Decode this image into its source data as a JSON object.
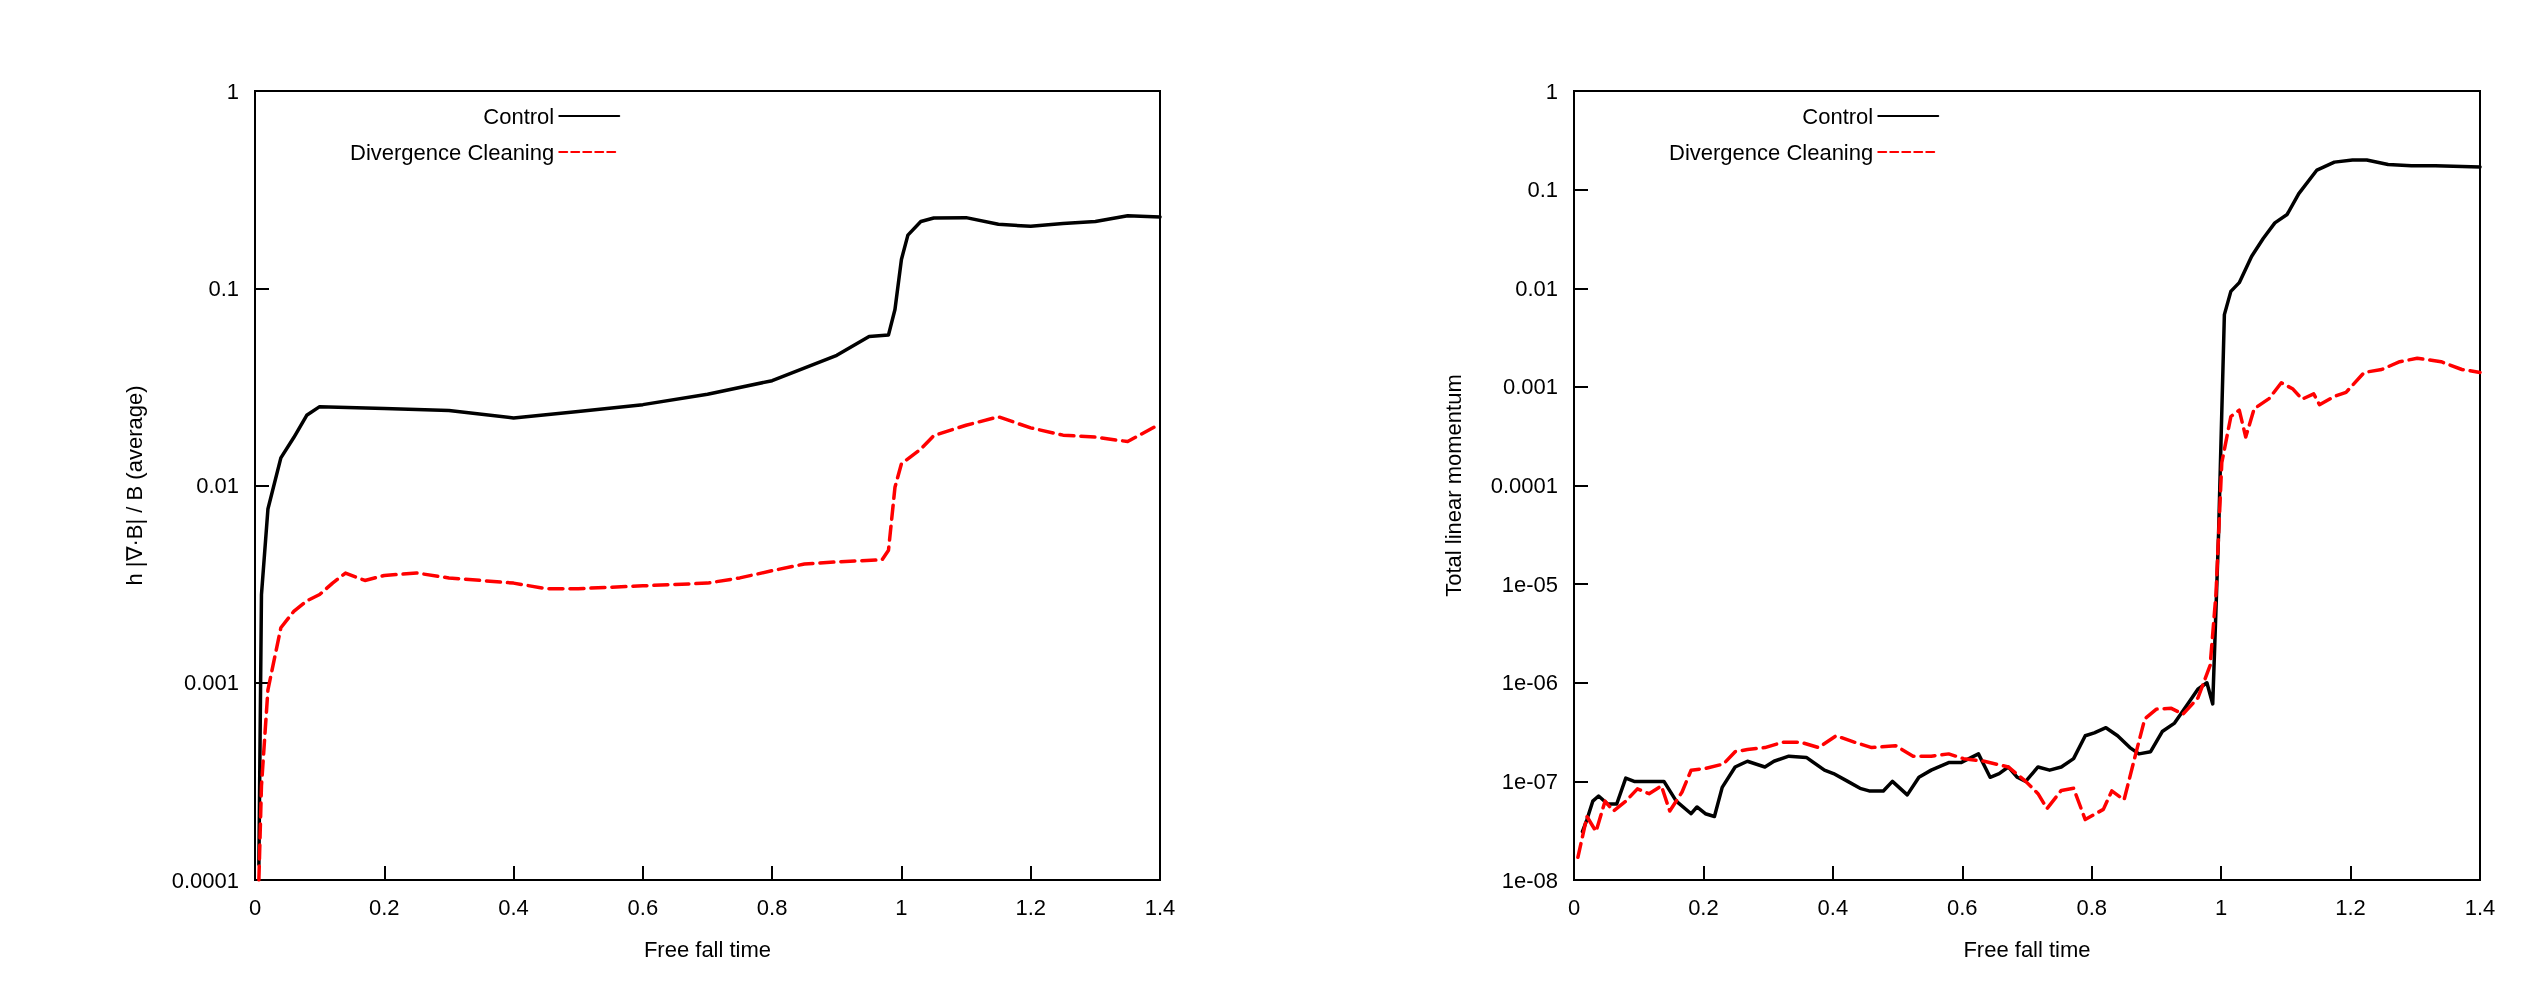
{
  "chart_data": [
    {
      "type": "line",
      "xlabel": "Free fall time",
      "ylabel": "h |∇·B| / B (average)",
      "log": "y",
      "legend": "top left",
      "grid": false,
      "marker": "none",
      "xlim": [
        0,
        1.4
      ],
      "xticks": [
        0,
        0.2,
        0.4,
        0.6,
        0.8,
        1,
        1.2,
        1.4
      ],
      "ylim": [
        0.0001,
        1
      ],
      "yticks": [
        0.0001,
        0.001,
        0.01,
        0.1,
        1
      ],
      "series": [
        {
          "name": "Control",
          "color": "#000000",
          "line_style": "solid",
          "x": [
            0.006,
            0.01,
            0.02,
            0.04,
            0.06,
            0.08,
            0.1,
            0.2,
            0.3,
            0.4,
            0.5,
            0.6,
            0.7,
            0.8,
            0.9,
            0.95,
            0.98,
            0.99,
            1.0,
            1.01,
            1.03,
            1.05,
            1.1,
            1.15,
            1.2,
            1.25,
            1.3,
            1.35,
            1.4
          ],
          "values": [
            0.00012,
            0.0028,
            0.0076,
            0.0138,
            0.0175,
            0.0227,
            0.0251,
            0.0246,
            0.024,
            0.022,
            0.0237,
            0.0257,
            0.029,
            0.034,
            0.0457,
            0.057,
            0.058,
            0.078,
            0.14,
            0.186,
            0.218,
            0.227,
            0.228,
            0.211,
            0.206,
            0.213,
            0.218,
            0.233,
            0.23
          ]
        },
        {
          "name": "Divergence Cleaning",
          "color": "#ff0000",
          "line_style": "dashed",
          "x": [
            0.006,
            0.01,
            0.02,
            0.04,
            0.06,
            0.08,
            0.1,
            0.12,
            0.14,
            0.17,
            0.2,
            0.25,
            0.3,
            0.35,
            0.4,
            0.45,
            0.5,
            0.6,
            0.7,
            0.75,
            0.8,
            0.85,
            0.9,
            0.97,
            0.98,
            0.99,
            1.0,
            1.03,
            1.05,
            1.1,
            1.15,
            1.2,
            1.25,
            1.3,
            1.35,
            1.4
          ],
          "values": [
            0.0001,
            0.0003,
            0.00092,
            0.0019,
            0.0023,
            0.0026,
            0.0028,
            0.0032,
            0.0036,
            0.0033,
            0.0035,
            0.0036,
            0.0034,
            0.0033,
            0.0032,
            0.003,
            0.003,
            0.0031,
            0.0032,
            0.0034,
            0.0037,
            0.004,
            0.0041,
            0.0042,
            0.0047,
            0.0098,
            0.0129,
            0.0153,
            0.0179,
            0.0202,
            0.0223,
            0.0196,
            0.018,
            0.0176,
            0.0167,
            0.0205
          ]
        }
      ]
    },
    {
      "type": "line",
      "xlabel": "Free fall time",
      "ylabel": "Total linear momentum",
      "log": "y",
      "legend": "top left",
      "grid": false,
      "marker": "none",
      "xlim": [
        0,
        1.4
      ],
      "xticks": [
        0,
        0.2,
        0.4,
        0.6,
        0.8,
        1,
        1.2,
        1.4
      ],
      "ylim": [
        1e-08,
        1
      ],
      "yticks": [
        {
          "value": 1e-08,
          "label": "1e-08"
        },
        {
          "value": 1e-07,
          "label": "1e-07"
        },
        {
          "value": 1e-06,
          "label": "1e-06"
        },
        {
          "value": 1e-05,
          "label": "1e-05"
        },
        0.0001,
        0.001,
        0.01,
        0.1,
        1
      ],
      "series": [
        {
          "name": "Control",
          "color": "#000000",
          "line_style": "solid",
          "x": [
            0.013,
            0.02,
            0.029,
            0.038,
            0.052,
            0.066,
            0.08,
            0.093,
            0.121,
            0.139,
            0.158,
            0.181,
            0.19,
            0.203,
            0.217,
            0.229,
            0.249,
            0.268,
            0.295,
            0.309,
            0.332,
            0.359,
            0.387,
            0.401,
            0.423,
            0.442,
            0.456,
            0.478,
            0.492,
            0.515,
            0.533,
            0.552,
            0.579,
            0.598,
            0.625,
            0.643,
            0.657,
            0.671,
            0.685,
            0.698,
            0.717,
            0.735,
            0.753,
            0.772,
            0.79,
            0.804,
            0.822,
            0.84,
            0.859,
            0.873,
            0.891,
            0.909,
            0.928,
            0.95,
            0.964,
            0.978,
            0.987,
            0.996,
            1.005,
            1.015,
            1.028,
            1.047,
            1.065,
            1.083,
            1.102,
            1.12,
            1.148,
            1.175,
            1.203,
            1.225,
            1.258,
            1.294,
            1.331,
            1.4
          ],
          "values": [
            3.1e-08,
            4.1e-08,
            6.3e-08,
            7.1e-08,
            5.9e-08,
            5.9e-08,
            1.08e-07,
            1e-07,
            1e-07,
            1e-07,
            6.3e-08,
            4.7e-08,
            5.5e-08,
            4.7e-08,
            4.4e-08,
            8.7e-08,
            1.4e-07,
            1.6e-07,
            1.4e-07,
            1.6e-07,
            1.8e-07,
            1.75e-07,
            1.3e-07,
            1.2e-07,
            1e-07,
            8.5e-08,
            8e-08,
            8e-08,
            1e-07,
            7.3e-08,
            1.1e-07,
            1.3e-07,
            1.55e-07,
            1.55e-07,
            1.9e-07,
            1.1e-07,
            1.2e-07,
            1.4e-07,
            1.1e-07,
            1e-07,
            1.4e-07,
            1.3e-07,
            1.4e-07,
            1.7e-07,
            2.9e-07,
            3.1e-07,
            3.5e-07,
            2.9e-07,
            2.2e-07,
            1.9e-07,
            2e-07,
            3.2e-07,
            3.9e-07,
            6.3e-07,
            8.6e-07,
            1e-06,
            6.1e-07,
            3.2e-05,
            0.0054,
            0.0093,
            0.0114,
            0.021,
            0.032,
            0.046,
            0.056,
            0.091,
            0.158,
            0.19,
            0.2,
            0.2,
            0.18,
            0.175,
            0.175,
            0.17
          ]
        },
        {
          "name": "Divergence Cleaning",
          "color": "#ff0000",
          "line_style": "dashed",
          "x": [
            0.006,
            0.02,
            0.034,
            0.048,
            0.061,
            0.08,
            0.098,
            0.116,
            0.135,
            0.148,
            0.167,
            0.181,
            0.203,
            0.231,
            0.249,
            0.268,
            0.295,
            0.323,
            0.35,
            0.378,
            0.405,
            0.433,
            0.46,
            0.497,
            0.524,
            0.552,
            0.579,
            0.602,
            0.634,
            0.671,
            0.698,
            0.717,
            0.731,
            0.753,
            0.772,
            0.79,
            0.818,
            0.831,
            0.85,
            0.868,
            0.882,
            0.9,
            0.923,
            0.941,
            0.964,
            0.983,
            0.992,
            1.001,
            1.015,
            1.028,
            1.038,
            1.051,
            1.074,
            1.093,
            1.111,
            1.125,
            1.143,
            1.152,
            1.175,
            1.193,
            1.221,
            1.248,
            1.276,
            1.303,
            1.34,
            1.372,
            1.4
          ],
          "values": [
            1.7e-08,
            4.4e-08,
            3.1e-08,
            6.3e-08,
            5e-08,
            6.3e-08,
            8.4e-08,
            7.5e-08,
            9e-08,
            5e-08,
            7.8e-08,
            1.3e-07,
            1.35e-07,
            1.5e-07,
            2e-07,
            2.1e-07,
            2.2e-07,
            2.5e-07,
            2.5e-07,
            2.2e-07,
            2.9e-07,
            2.5e-07,
            2.2e-07,
            2.3e-07,
            1.8e-07,
            1.8e-07,
            1.9e-07,
            1.7e-07,
            1.6e-07,
            1.4e-07,
            1e-07,
            7.5e-08,
            5.3e-08,
            8.1e-08,
            8.5e-08,
            4.1e-08,
            5.2e-08,
            8e-08,
            6.5e-08,
            1.9e-07,
            4.3e-07,
            5.4e-07,
            5.5e-07,
            4.8e-07,
            7e-07,
            1.5e-06,
            7.9e-06,
            0.00017,
            0.0005,
            0.00058,
            0.00031,
            0.0006,
            0.00076,
            0.0011,
            0.00095,
            0.00075,
            0.00085,
            0.00066,
            0.0008,
            0.00088,
            0.0014,
            0.0015,
            0.0018,
            0.00195,
            0.0018,
            0.0015,
            0.0014
          ]
        }
      ]
    }
  ]
}
